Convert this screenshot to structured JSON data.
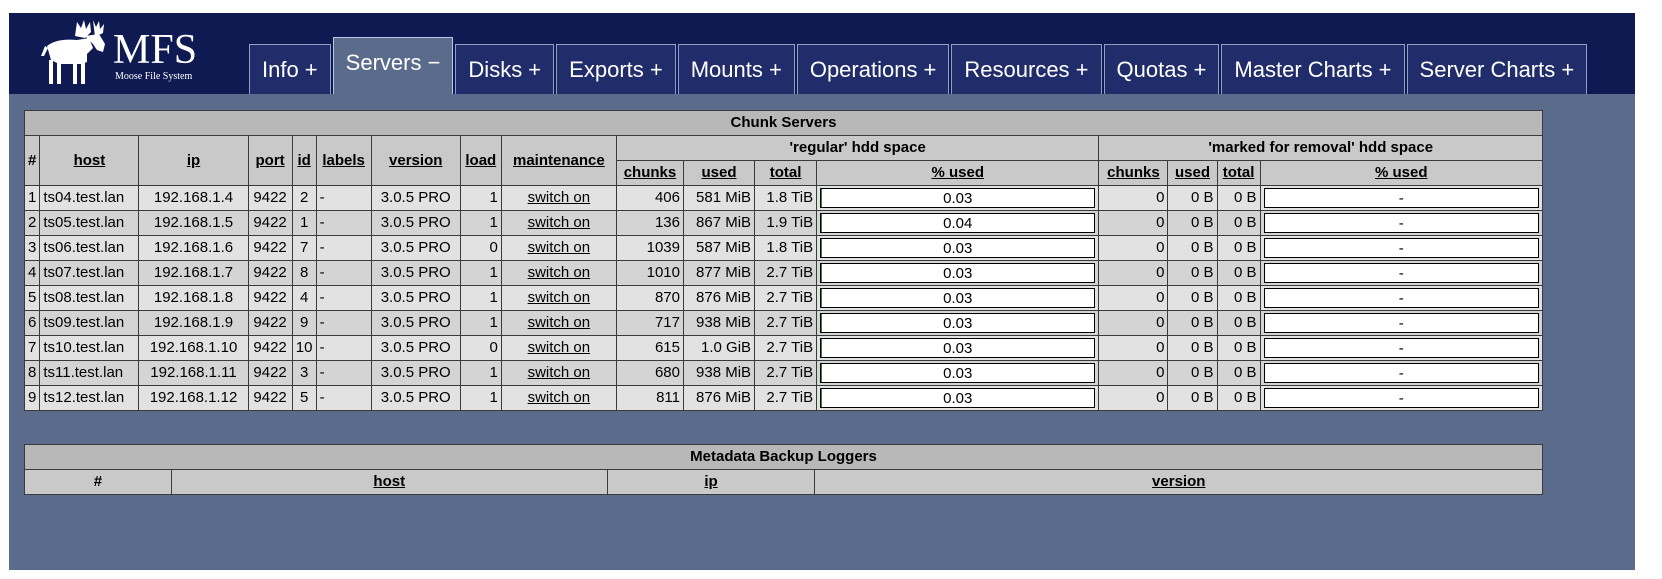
{
  "logo": {
    "text": "MFS",
    "subtitle": "Moose File System"
  },
  "tabs": [
    {
      "label": "Info +",
      "active": false
    },
    {
      "label": "Servers −",
      "active": true
    },
    {
      "label": "Disks +",
      "active": false
    },
    {
      "label": "Exports +",
      "active": false
    },
    {
      "label": "Mounts +",
      "active": false
    },
    {
      "label": "Operations +",
      "active": false
    },
    {
      "label": "Resources +",
      "active": false
    },
    {
      "label": "Quotas +",
      "active": false
    },
    {
      "label": "Master Charts +",
      "active": false
    },
    {
      "label": "Server Charts +",
      "active": false
    }
  ],
  "chunk_servers": {
    "title": "Chunk Servers",
    "group_regular": "'regular' hdd space",
    "group_removal": "'marked for removal' hdd space",
    "headers": {
      "num": "#",
      "host": "host",
      "ip": "ip",
      "port": "port",
      "id": "id",
      "labels": "labels",
      "version": "version",
      "load": "load",
      "maintenance": "maintenance",
      "chunks": "chunks",
      "used": "used",
      "total": "total",
      "pct_used": "% used"
    },
    "rows": [
      {
        "num": "1",
        "host": "ts04.test.lan",
        "ip": "192.168.1.4",
        "port": "9422",
        "id": "2",
        "labels": "-",
        "version": "3.0.5 PRO",
        "load": "1",
        "maintenance": "switch on",
        "chunks": "406",
        "used": "581 MiB",
        "total": "1.8 TiB",
        "pct": "0.03",
        "pct_value": 0.03,
        "r_chunks": "0",
        "r_used": "0 B",
        "r_total": "0 B",
        "r_pct": "-"
      },
      {
        "num": "2",
        "host": "ts05.test.lan",
        "ip": "192.168.1.5",
        "port": "9422",
        "id": "1",
        "labels": "-",
        "version": "3.0.5 PRO",
        "load": "1",
        "maintenance": "switch on",
        "chunks": "136",
        "used": "867 MiB",
        "total": "1.9 TiB",
        "pct": "0.04",
        "pct_value": 0.04,
        "r_chunks": "0",
        "r_used": "0 B",
        "r_total": "0 B",
        "r_pct": "-"
      },
      {
        "num": "3",
        "host": "ts06.test.lan",
        "ip": "192.168.1.6",
        "port": "9422",
        "id": "7",
        "labels": "-",
        "version": "3.0.5 PRO",
        "load": "0",
        "maintenance": "switch on",
        "chunks": "1039",
        "used": "587 MiB",
        "total": "1.8 TiB",
        "pct": "0.03",
        "pct_value": 0.03,
        "r_chunks": "0",
        "r_used": "0 B",
        "r_total": "0 B",
        "r_pct": "-"
      },
      {
        "num": "4",
        "host": "ts07.test.lan",
        "ip": "192.168.1.7",
        "port": "9422",
        "id": "8",
        "labels": "-",
        "version": "3.0.5 PRO",
        "load": "1",
        "maintenance": "switch on",
        "chunks": "1010",
        "used": "877 MiB",
        "total": "2.7 TiB",
        "pct": "0.03",
        "pct_value": 0.03,
        "r_chunks": "0",
        "r_used": "0 B",
        "r_total": "0 B",
        "r_pct": "-"
      },
      {
        "num": "5",
        "host": "ts08.test.lan",
        "ip": "192.168.1.8",
        "port": "9422",
        "id": "4",
        "labels": "-",
        "version": "3.0.5 PRO",
        "load": "1",
        "maintenance": "switch on",
        "chunks": "870",
        "used": "876 MiB",
        "total": "2.7 TiB",
        "pct": "0.03",
        "pct_value": 0.03,
        "r_chunks": "0",
        "r_used": "0 B",
        "r_total": "0 B",
        "r_pct": "-"
      },
      {
        "num": "6",
        "host": "ts09.test.lan",
        "ip": "192.168.1.9",
        "port": "9422",
        "id": "9",
        "labels": "-",
        "version": "3.0.5 PRO",
        "load": "1",
        "maintenance": "switch on",
        "chunks": "717",
        "used": "938 MiB",
        "total": "2.7 TiB",
        "pct": "0.03",
        "pct_value": 0.03,
        "r_chunks": "0",
        "r_used": "0 B",
        "r_total": "0 B",
        "r_pct": "-"
      },
      {
        "num": "7",
        "host": "ts10.test.lan",
        "ip": "192.168.1.10",
        "port": "9422",
        "id": "10",
        "labels": "-",
        "version": "3.0.5 PRO",
        "load": "0",
        "maintenance": "switch on",
        "chunks": "615",
        "used": "1.0 GiB",
        "total": "2.7 TiB",
        "pct": "0.03",
        "pct_value": 0.03,
        "r_chunks": "0",
        "r_used": "0 B",
        "r_total": "0 B",
        "r_pct": "-"
      },
      {
        "num": "8",
        "host": "ts11.test.lan",
        "ip": "192.168.1.11",
        "port": "9422",
        "id": "3",
        "labels": "-",
        "version": "3.0.5 PRO",
        "load": "1",
        "maintenance": "switch on",
        "chunks": "680",
        "used": "938 MiB",
        "total": "2.7 TiB",
        "pct": "0.03",
        "pct_value": 0.03,
        "r_chunks": "0",
        "r_used": "0 B",
        "r_total": "0 B",
        "r_pct": "-"
      },
      {
        "num": "9",
        "host": "ts12.test.lan",
        "ip": "192.168.1.12",
        "port": "9422",
        "id": "5",
        "labels": "-",
        "version": "3.0.5 PRO",
        "load": "1",
        "maintenance": "switch on",
        "chunks": "811",
        "used": "876 MiB",
        "total": "2.7 TiB",
        "pct": "0.03",
        "pct_value": 0.03,
        "r_chunks": "0",
        "r_used": "0 B",
        "r_total": "0 B",
        "r_pct": "-"
      }
    ]
  },
  "metadata_loggers": {
    "title": "Metadata Backup Loggers",
    "headers": {
      "num": "#",
      "host": "host",
      "ip": "ip",
      "version": "version"
    }
  },
  "colors": {
    "header_bg": "#101a52",
    "page_bg": "#5b6b8b",
    "tab_bg": "#202d6a",
    "bar_fill": "#2a8a2a"
  }
}
